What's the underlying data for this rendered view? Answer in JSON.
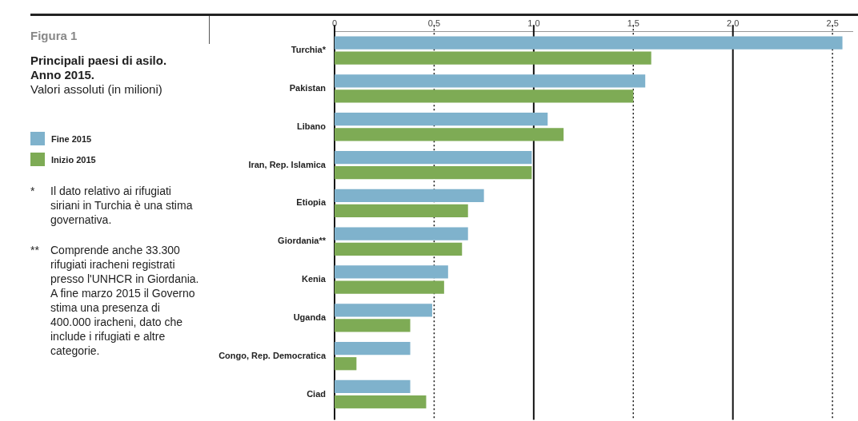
{
  "chart_data": {
    "type": "bar",
    "orientation": "horizontal",
    "title": "Principali paesi di asilo. Anno 2015.",
    "subtitle": "Valori assoluti (in milioni)",
    "categories": [
      "Turchia*",
      "Pakistan",
      "Libano",
      "Iran, Rep. Islamica",
      "Etiopia",
      "Giordania**",
      "Kenia",
      "Uganda",
      "Congo, Rep. Democratica",
      "Ciad"
    ],
    "series": [
      {
        "name": "Fine 2015",
        "color": "#7fb2cc",
        "values": [
          2.55,
          1.56,
          1.07,
          0.99,
          0.75,
          0.67,
          0.57,
          0.49,
          0.38,
          0.38
        ]
      },
      {
        "name": "Inizio 2015",
        "color": "#7eab55",
        "values": [
          1.59,
          1.5,
          1.15,
          0.99,
          0.67,
          0.64,
          0.55,
          0.38,
          0.11,
          0.46
        ]
      }
    ],
    "xlim": [
      0,
      2.6
    ],
    "xticks": [
      {
        "value": 0,
        "label": "0"
      },
      {
        "value": 0.5,
        "label": "0,5"
      },
      {
        "value": 1,
        "label": "1,0"
      },
      {
        "value": 1.5,
        "label": "1,5"
      },
      {
        "value": 2,
        "label": "2,0"
      },
      {
        "value": 2.5,
        "label": "2,5"
      }
    ],
    "grid": "x",
    "legend": "left",
    "annotations": [
      "Figura 1",
      "*   Il dato relativo ai rifugiati siriani in Turchia è una stima governativa.",
      "**  Comprende anche 33.300 rifugiati iracheni registrati presso l'UNHCR in Giordania. A fine marzo 2015 il Governo  stima una presenza di 400.000 iracheni, dato che include i rifugiati e altre categorie."
    ]
  }
}
